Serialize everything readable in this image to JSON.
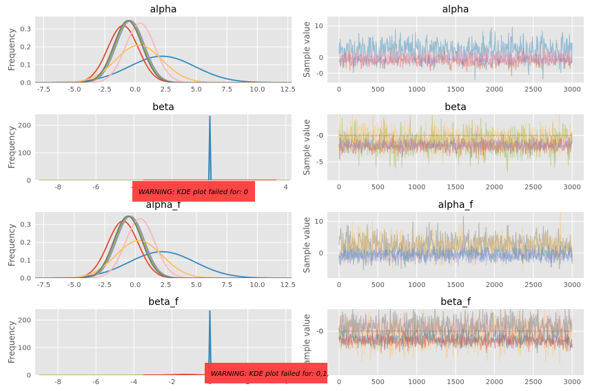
{
  "chart_data": [
    {
      "type": "line",
      "title": "alpha",
      "xlabel": "",
      "ylabel": "Frequency",
      "xlim": [
        -8.2,
        12.8
      ],
      "ylim": [
        0,
        0.37
      ],
      "xticks": [
        "-7.5",
        "-5.0",
        "-2.5",
        "0.0",
        "2.5",
        "5.0",
        "7.5",
        "10.0",
        "12.5"
      ],
      "yticks": [
        "0.0",
        "0.1",
        "0.2",
        "0.3"
      ],
      "series": [
        {
          "mu": 2.2,
          "sd": 2.7,
          "color": "#348ABD"
        },
        {
          "mu": -1.0,
          "sd": 1.25,
          "color": "#E24A33"
        },
        {
          "mu": -0.4,
          "sd": 1.15,
          "color": "#988ED5"
        },
        {
          "mu": -0.5,
          "sd": 1.15,
          "color": "#8EBA42"
        },
        {
          "mu": 0.4,
          "sd": 1.2,
          "color": "#FFB5B8"
        },
        {
          "mu": 0.3,
          "sd": 1.9,
          "color": "#FBC15E"
        },
        {
          "mu": -0.6,
          "sd": 1.15,
          "color": "#777777"
        }
      ]
    },
    {
      "type": "line",
      "title": "alpha",
      "xlabel": "",
      "ylabel": "Sample value",
      "xlim": [
        -150,
        3150
      ],
      "ylim": [
        -8,
        13
      ],
      "xticks": [
        "0",
        "500",
        "1000",
        "1500",
        "2000",
        "2500",
        "3000"
      ],
      "yticks": [
        "-0",
        "0",
        "10"
      ],
      "series": [
        {
          "center": 2.2,
          "spread": 2.7,
          "color": "#348ABD"
        },
        {
          "center": -1.0,
          "spread": 1.25,
          "color": "#E24A33"
        },
        {
          "center": -0.4,
          "spread": 1.15,
          "color": "#988ED5"
        },
        {
          "center": 0.4,
          "spread": 1.2,
          "color": "#FFB5B8"
        }
      ]
    },
    {
      "type": "line",
      "title": "beta",
      "xlabel": "",
      "ylabel": "Frequency",
      "xlim": [
        -9.2,
        4.3
      ],
      "ylim": [
        0,
        240
      ],
      "xticks": [
        "-8",
        "-6",
        "-4",
        "-2",
        "0",
        "2",
        "4"
      ],
      "yticks": [
        "0",
        "100",
        "200"
      ],
      "spike": {
        "x": 0,
        "y": 235,
        "color": "#348ABD"
      },
      "warning": "WARNING: KDE plot failed for: 0"
    },
    {
      "type": "line",
      "title": "beta",
      "xlabel": "",
      "ylabel": "Sample value",
      "xlim": [
        -150,
        3150
      ],
      "ylim": [
        -8.5,
        4
      ],
      "xticks": [
        "0",
        "500",
        "1000",
        "1500",
        "2000",
        "2500",
        "3000"
      ],
      "yticks": [
        "-5",
        "-0",
        "0"
      ],
      "series": [
        {
          "center": -1.5,
          "spread": 1.8,
          "color": "#8EBA42"
        },
        {
          "center": -0.5,
          "spread": 1.6,
          "color": "#FBC15E"
        },
        {
          "center": -2.0,
          "spread": 0.8,
          "color": "#E24A33"
        },
        {
          "center": -1.8,
          "spread": 0.7,
          "color": "#988ED5"
        },
        {
          "center": 0.0,
          "spread": 0.05,
          "color": "#777777"
        }
      ]
    },
    {
      "type": "line",
      "title": "alpha_f",
      "xlabel": "",
      "ylabel": "Frequency",
      "xlim": [
        -8.2,
        12.8
      ],
      "ylim": [
        0,
        0.37
      ],
      "xticks": [
        "-7.5",
        "-5.0",
        "-2.5",
        "0.0",
        "2.5",
        "5.0",
        "7.5",
        "10.0",
        "12.5"
      ],
      "yticks": [
        "0.0",
        "0.1",
        "0.2",
        "0.3"
      ],
      "series": [
        {
          "mu": 2.2,
          "sd": 2.7,
          "color": "#348ABD"
        },
        {
          "mu": -1.0,
          "sd": 1.25,
          "color": "#E24A33"
        },
        {
          "mu": -0.4,
          "sd": 1.15,
          "color": "#988ED5"
        },
        {
          "mu": -0.5,
          "sd": 1.15,
          "color": "#8EBA42"
        },
        {
          "mu": 0.4,
          "sd": 1.2,
          "color": "#FFB5B8"
        },
        {
          "mu": 0.3,
          "sd": 1.9,
          "color": "#FBC15E"
        },
        {
          "mu": -0.6,
          "sd": 1.15,
          "color": "#777777"
        }
      ]
    },
    {
      "type": "line",
      "title": "alpha_f",
      "xlabel": "",
      "ylabel": "Sample value",
      "xlim": [
        -150,
        3150
      ],
      "ylim": [
        -8,
        13
      ],
      "xticks": [
        "0",
        "500",
        "1000",
        "1500",
        "2000",
        "2500",
        "3000"
      ],
      "yticks": [
        "0",
        "10"
      ],
      "series": [
        {
          "center": 2.5,
          "spread": 2.8,
          "color": "#777777"
        },
        {
          "center": 2.0,
          "spread": 2.6,
          "color": "#FBC15E"
        },
        {
          "center": -0.5,
          "spread": 1.3,
          "color": "#348ABD"
        },
        {
          "center": -0.8,
          "spread": 1.3,
          "color": "#988ED5"
        }
      ]
    },
    {
      "type": "line",
      "title": "beta_f",
      "xlabel": "",
      "ylabel": "Frequency",
      "xlim": [
        -9.2,
        4.3
      ],
      "ylim": [
        0,
        240
      ],
      "xticks": [
        "-8",
        "-6",
        "-4",
        "-2",
        "0",
        "2",
        "4"
      ],
      "yticks": [
        "0",
        "100",
        "200"
      ],
      "spike": {
        "x": 0,
        "y": 235,
        "color": "#348ABD"
      },
      "bump": {
        "mu": -1.3,
        "sd": 0.8,
        "peak": 3,
        "color": "#E24A33"
      },
      "warning": "WARNING: KDE plot failed for: 0,1,"
    },
    {
      "type": "line",
      "title": "beta_f",
      "xlabel": "",
      "ylabel": "Sample value",
      "xlim": [
        -150,
        3150
      ],
      "ylim": [
        -8,
        4
      ],
      "xticks": [
        "0",
        "500",
        "1000",
        "1500",
        "2000",
        "2500",
        "3000"
      ],
      "yticks": [
        "-0",
        "0"
      ],
      "series": [
        {
          "center": -1.0,
          "spread": 1.9,
          "color": "#FBC15E"
        },
        {
          "center": 0.5,
          "spread": 1.4,
          "color": "#FFB5B8"
        },
        {
          "center": 0.8,
          "spread": 1.5,
          "color": "#777777"
        },
        {
          "center": -1.5,
          "spread": 0.8,
          "color": "#348ABD"
        },
        {
          "center": -1.8,
          "spread": 0.7,
          "color": "#E24A33"
        },
        {
          "center": 0.0,
          "spread": 0.05,
          "color": "#8c7b62"
        }
      ]
    }
  ]
}
